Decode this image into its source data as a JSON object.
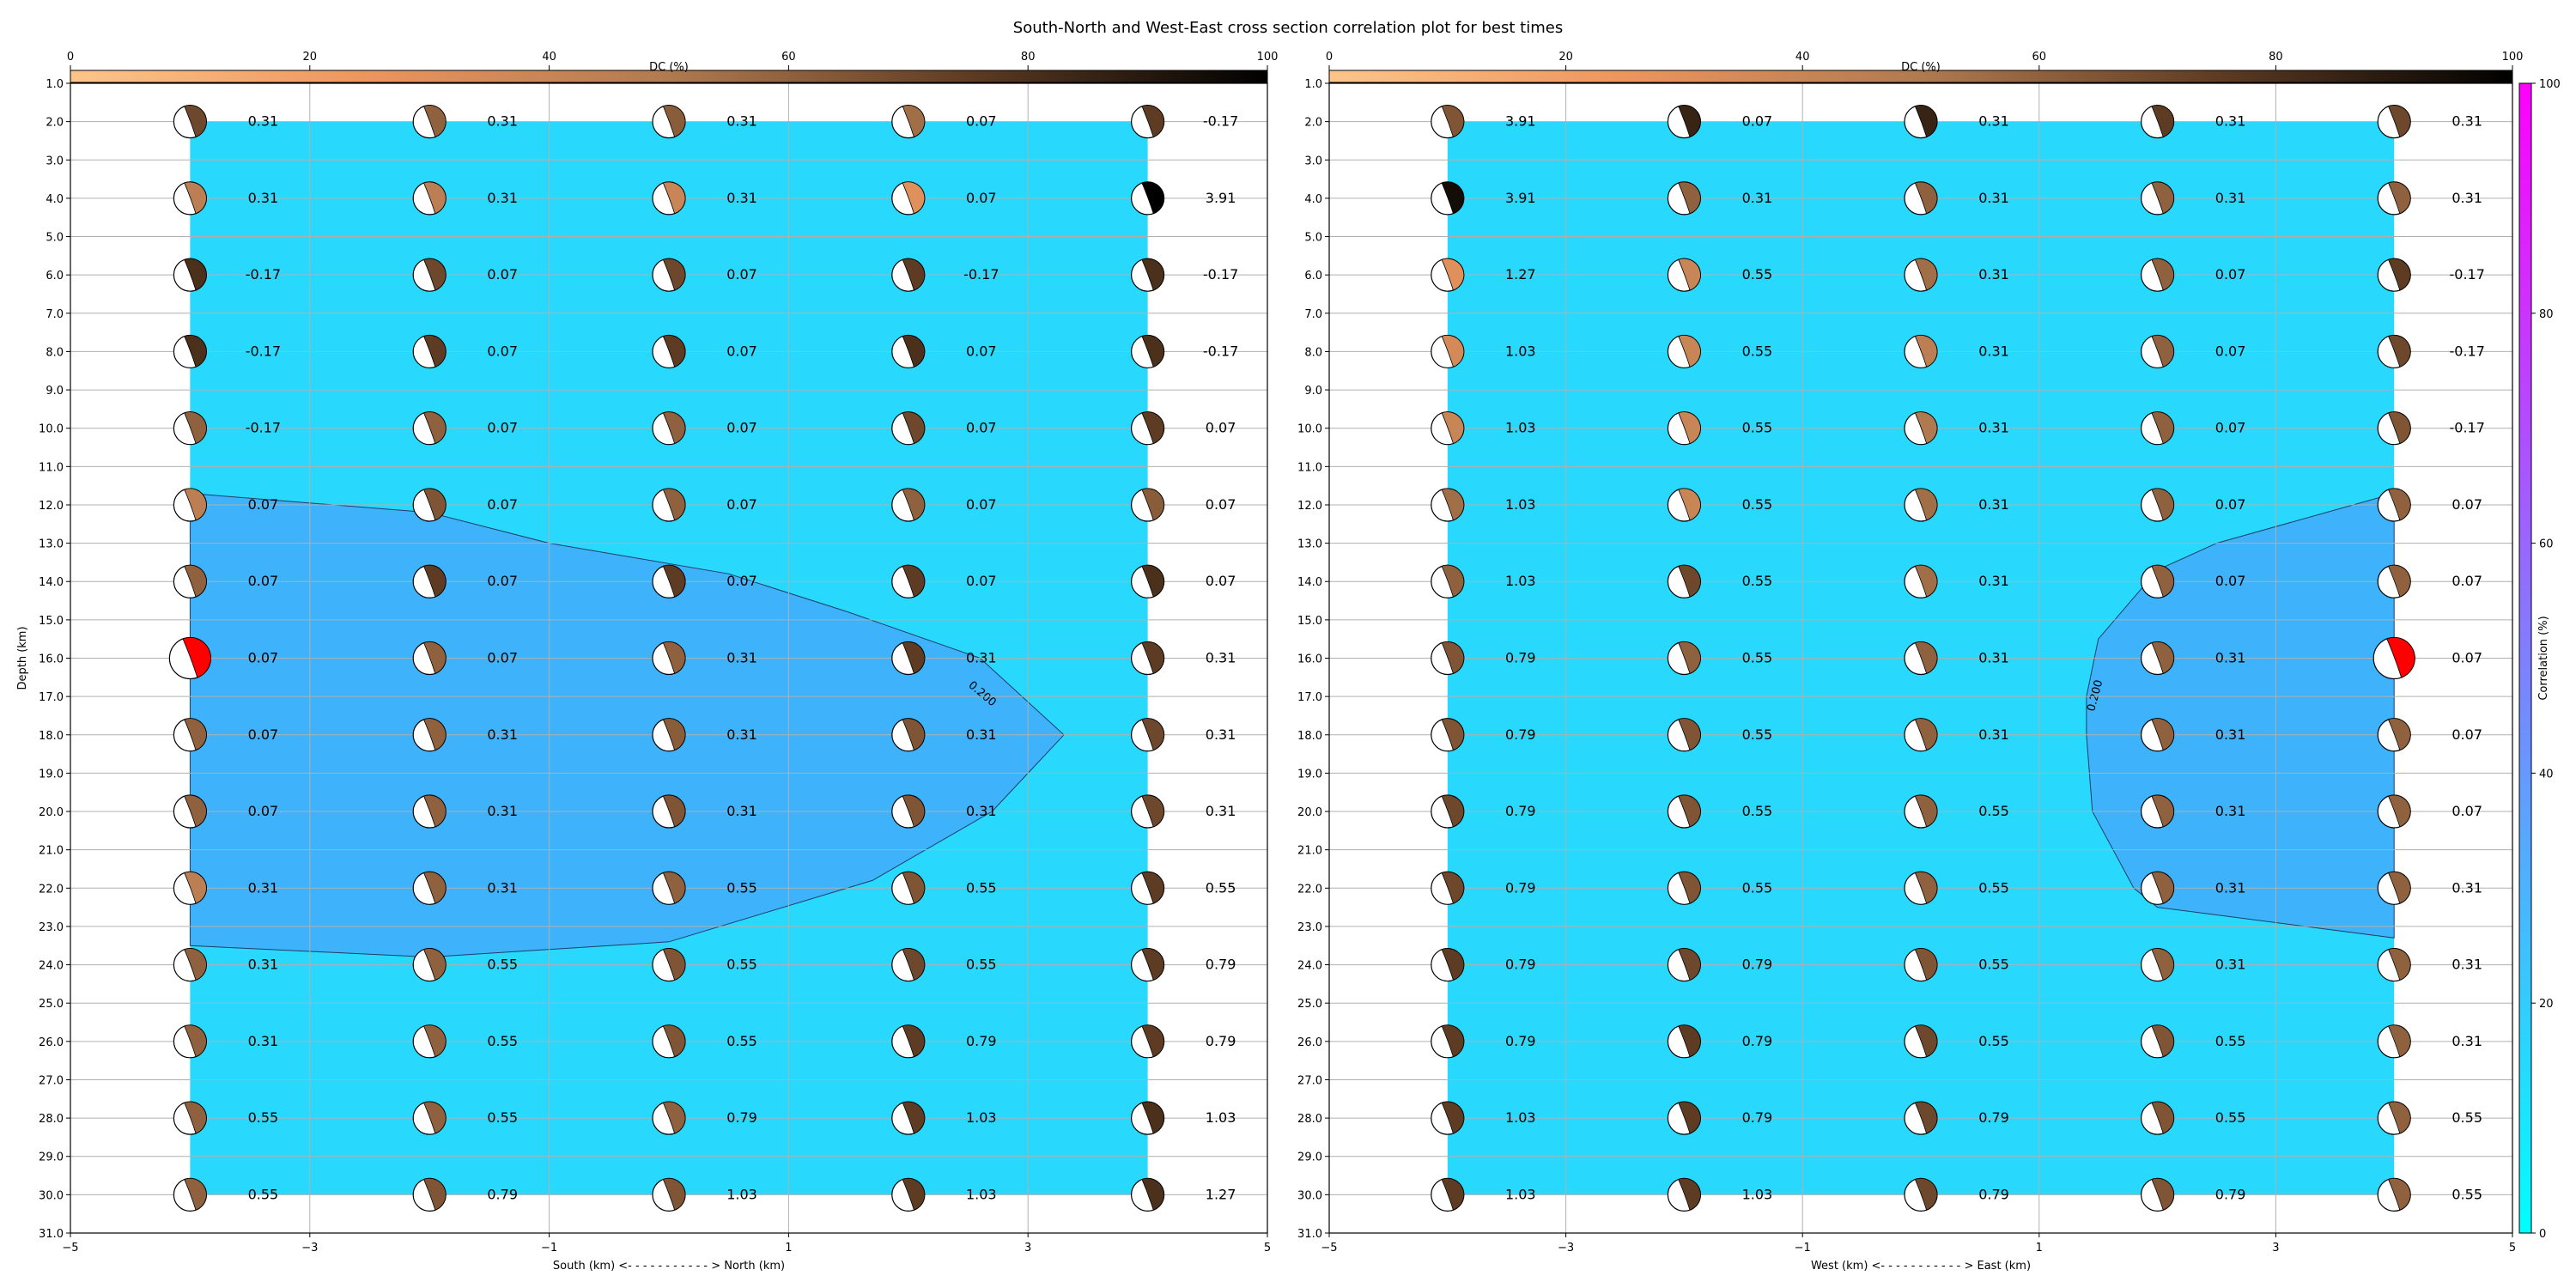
{
  "figure_title": "South-North and West-East cross section correlation plot for best times",
  "colors": {
    "background_fill": "#29d8fd",
    "contour_fill": "#3fb2fc",
    "best_fill": "#ff0000",
    "dc_cmap": [
      "#fdc58a",
      "#ec955e",
      "#b07a50",
      "#5e3c23",
      "#000000"
    ],
    "corr_cmap": [
      "#00ffff",
      "#ff00ff"
    ],
    "grid": "#b0b0b0"
  },
  "chart_data": [
    {
      "type": "contour-beachball",
      "title": "",
      "xlabel": "South (km) <- - - - - - - - - - - > North (km)",
      "ylabel": "Depth (km)",
      "xlim": [
        -5,
        5
      ],
      "ylim": [
        31,
        1
      ],
      "x_ticks": [
        "−5",
        "−3",
        "−1",
        "1",
        "3",
        "5"
      ],
      "x_tick_values": [
        -5,
        -3,
        -1,
        1,
        3,
        5
      ],
      "y_ticks": [
        "1.0",
        "2.0",
        "3.0",
        "4.0",
        "5.0",
        "6.0",
        "7.0",
        "8.0",
        "9.0",
        "10.0",
        "11.0",
        "12.0",
        "13.0",
        "14.0",
        "15.0",
        "16.0",
        "17.0",
        "18.0",
        "19.0",
        "20.0",
        "21.0",
        "22.0",
        "23.0",
        "24.0",
        "25.0",
        "26.0",
        "27.0",
        "28.0",
        "29.0",
        "30.0",
        "31.0"
      ],
      "grid": true,
      "colorbar": {
        "label": "DC (%)",
        "ticks": [
          "0",
          "20",
          "40",
          "60",
          "80",
          "100"
        ],
        "placement": "top"
      },
      "field_extent": {
        "x": [
          -4,
          4
        ],
        "depth": [
          2,
          30
        ]
      },
      "contour": {
        "level_label": "0.200",
        "label_at": [
          2.6,
          17
        ],
        "outline": [
          [
            -4,
            11.7
          ],
          [
            -2,
            12.2
          ],
          [
            -1,
            13.0
          ],
          [
            0.5,
            13.8
          ],
          [
            1.5,
            14.8
          ],
          [
            2.6,
            16.0
          ],
          [
            3.3,
            18.0
          ],
          [
            3.0,
            19.0
          ],
          [
            2.7,
            20.0
          ],
          [
            1.7,
            21.8
          ],
          [
            0,
            23.4
          ],
          [
            -2,
            23.8
          ],
          [
            -4,
            23.5
          ]
        ]
      },
      "x": [
        -4,
        -2,
        0,
        2,
        4
      ],
      "depths": [
        2,
        4,
        6,
        8,
        10,
        12,
        14,
        16,
        18,
        20,
        22,
        24,
        26,
        28,
        30
      ],
      "values": [
        [
          "0.31",
          "0.31",
          "0.31",
          "0.07",
          "-0.17"
        ],
        [
          "0.31",
          "0.31",
          "0.31",
          "0.07",
          "3.91"
        ],
        [
          "-0.17",
          "0.07",
          "0.07",
          "-0.17",
          "-0.17"
        ],
        [
          "-0.17",
          "0.07",
          "0.07",
          "0.07",
          "-0.17"
        ],
        [
          "-0.17",
          "0.07",
          "0.07",
          "0.07",
          "0.07"
        ],
        [
          "0.07",
          "0.07",
          "0.07",
          "0.07",
          "0.07"
        ],
        [
          "0.07",
          "0.07",
          "0.07",
          "0.07",
          "0.07"
        ],
        [
          "0.07",
          "0.07",
          "0.31",
          "0.31",
          "0.31"
        ],
        [
          "0.07",
          "0.31",
          "0.31",
          "0.31",
          "0.31"
        ],
        [
          "0.07",
          "0.31",
          "0.31",
          "0.31",
          "0.31"
        ],
        [
          "0.31",
          "0.31",
          "0.55",
          "0.55",
          "0.55"
        ],
        [
          "0.31",
          "0.55",
          "0.55",
          "0.55",
          "0.79"
        ],
        [
          "0.31",
          "0.55",
          "0.55",
          "0.79",
          "0.79"
        ],
        [
          "0.55",
          "0.55",
          "0.79",
          "1.03",
          "1.03"
        ],
        [
          "0.55",
          "0.79",
          "1.03",
          "1.03",
          "1.27"
        ]
      ],
      "dc": [
        [
          70,
          60,
          62,
          55,
          75
        ],
        [
          45,
          45,
          40,
          30,
          100
        ],
        [
          80,
          70,
          70,
          75,
          80
        ],
        [
          80,
          75,
          75,
          80,
          80
        ],
        [
          60,
          60,
          60,
          70,
          75
        ],
        [
          45,
          65,
          60,
          60,
          62
        ],
        [
          60,
          75,
          75,
          75,
          80
        ],
        [
          0,
          60,
          60,
          75,
          75
        ],
        [
          60,
          60,
          62,
          65,
          70
        ],
        [
          60,
          60,
          65,
          65,
          70
        ],
        [
          45,
          60,
          60,
          65,
          75
        ],
        [
          60,
          60,
          65,
          70,
          75
        ],
        [
          60,
          60,
          65,
          75,
          75
        ],
        [
          60,
          60,
          60,
          75,
          80
        ],
        [
          60,
          65,
          65,
          75,
          80
        ]
      ],
      "best": [
        -4,
        16
      ]
    },
    {
      "type": "contour-beachball",
      "title": "",
      "xlabel": "West (km) <- - - - - - - - - - - > East (km)",
      "ylabel": "",
      "xlim": [
        -5,
        5
      ],
      "ylim": [
        31,
        1
      ],
      "x_ticks": [
        "−5",
        "−3",
        "−1",
        "1",
        "3",
        "5"
      ],
      "x_tick_values": [
        -5,
        -3,
        -1,
        1,
        3,
        5
      ],
      "y_ticks": [
        "1.0",
        "2.0",
        "3.0",
        "4.0",
        "5.0",
        "6.0",
        "7.0",
        "8.0",
        "9.0",
        "10.0",
        "11.0",
        "12.0",
        "13.0",
        "14.0",
        "15.0",
        "16.0",
        "17.0",
        "18.0",
        "19.0",
        "20.0",
        "21.0",
        "22.0",
        "23.0",
        "24.0",
        "25.0",
        "26.0",
        "27.0",
        "28.0",
        "29.0",
        "30.0",
        "31.0"
      ],
      "grid": true,
      "colorbar": {
        "label": "DC (%)",
        "ticks": [
          "0",
          "20",
          "40",
          "60",
          "80",
          "100"
        ],
        "placement": "top"
      },
      "corr_colorbar": {
        "label": "Correlation (%)",
        "ticks": [
          "0",
          "20",
          "40",
          "60",
          "80",
          "100"
        ],
        "placement": "right"
      },
      "field_extent": {
        "x": [
          -4,
          4
        ],
        "depth": [
          2,
          30
        ]
      },
      "contour": {
        "level_label": "0.200",
        "label_at": [
          1.5,
          17
        ],
        "outline": [
          [
            4,
            11.7
          ],
          [
            2.5,
            13.0
          ],
          [
            2,
            13.7
          ],
          [
            1.5,
            15.5
          ],
          [
            1.4,
            17.0
          ],
          [
            1.4,
            18.0
          ],
          [
            1.45,
            20.0
          ],
          [
            1.8,
            22.0
          ],
          [
            2,
            22.5
          ],
          [
            4,
            23.3
          ]
        ]
      },
      "x": [
        -4,
        -2,
        0,
        2,
        4
      ],
      "depths": [
        2,
        4,
        6,
        8,
        10,
        12,
        14,
        16,
        18,
        20,
        22,
        24,
        26,
        28,
        30
      ],
      "values": [
        [
          "3.91",
          "0.07",
          "0.31",
          "0.31",
          "0.31"
        ],
        [
          "3.91",
          "0.31",
          "0.31",
          "0.31",
          "0.31"
        ],
        [
          "1.27",
          "0.55",
          "0.31",
          "0.07",
          "-0.17"
        ],
        [
          "1.03",
          "0.55",
          "0.31",
          "0.07",
          "-0.17"
        ],
        [
          "1.03",
          "0.55",
          "0.31",
          "0.07",
          "-0.17"
        ],
        [
          "1.03",
          "0.55",
          "0.31",
          "0.07",
          "0.07"
        ],
        [
          "1.03",
          "0.55",
          "0.31",
          "0.07",
          "0.07"
        ],
        [
          "0.79",
          "0.55",
          "0.31",
          "0.31",
          "0.07"
        ],
        [
          "0.79",
          "0.55",
          "0.31",
          "0.31",
          "0.07"
        ],
        [
          "0.79",
          "0.55",
          "0.55",
          "0.31",
          "0.07"
        ],
        [
          "0.79",
          "0.55",
          "0.55",
          "0.31",
          "0.31"
        ],
        [
          "0.79",
          "0.79",
          "0.55",
          "0.31",
          "0.31"
        ],
        [
          "0.79",
          "0.79",
          "0.55",
          "0.55",
          "0.31"
        ],
        [
          "1.03",
          "0.79",
          "0.79",
          "0.55",
          "0.55"
        ],
        [
          "1.03",
          "1.03",
          "0.79",
          "0.79",
          "0.55"
        ]
      ],
      "dc": [
        [
          65,
          85,
          85,
          75,
          70
        ],
        [
          95,
          60,
          60,
          60,
          60
        ],
        [
          30,
          40,
          55,
          60,
          75
        ],
        [
          35,
          40,
          45,
          60,
          70
        ],
        [
          40,
          40,
          50,
          60,
          65
        ],
        [
          55,
          40,
          55,
          60,
          60
        ],
        [
          60,
          70,
          55,
          60,
          60
        ],
        [
          65,
          60,
          60,
          60,
          0
        ],
        [
          65,
          65,
          60,
          60,
          60
        ],
        [
          70,
          65,
          60,
          60,
          60
        ],
        [
          70,
          65,
          60,
          60,
          60
        ],
        [
          75,
          70,
          65,
          60,
          60
        ],
        [
          75,
          75,
          70,
          65,
          60
        ],
        [
          75,
          75,
          70,
          65,
          60
        ],
        [
          75,
          75,
          70,
          65,
          60
        ]
      ],
      "best": [
        4,
        16
      ]
    }
  ]
}
